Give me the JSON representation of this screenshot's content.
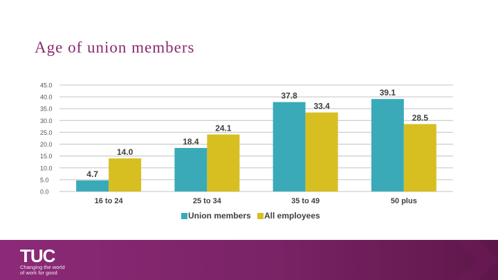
{
  "slide": {
    "title": "Age of union members"
  },
  "footer": {
    "logo": "TUC",
    "tagline": "Changing the world of work for good"
  },
  "colors": {
    "title": "#8a2a6e",
    "union": "#3aaab8",
    "all": "#d7bf22",
    "grid": "#cfcfcf",
    "footer": "#7a2366"
  },
  "chart_data": {
    "type": "bar",
    "title": "",
    "xlabel": "",
    "ylabel": "",
    "categories": [
      "16 to 24",
      "25 to 34",
      "35 to 49",
      "50 plus"
    ],
    "series": [
      {
        "name": "Union members",
        "values": [
          4.7,
          18.4,
          37.8,
          39.1
        ]
      },
      {
        "name": "All employees",
        "values": [
          14.0,
          24.1,
          33.4,
          28.5
        ]
      }
    ],
    "yticks": [
      "0.0",
      "5.0",
      "10.0",
      "15.0",
      "20.0",
      "25.0",
      "30.0",
      "35.0",
      "40.0",
      "45.0"
    ],
    "ylim": [
      0,
      45
    ],
    "grid": true,
    "legend": "bottom",
    "data_labels": true
  }
}
